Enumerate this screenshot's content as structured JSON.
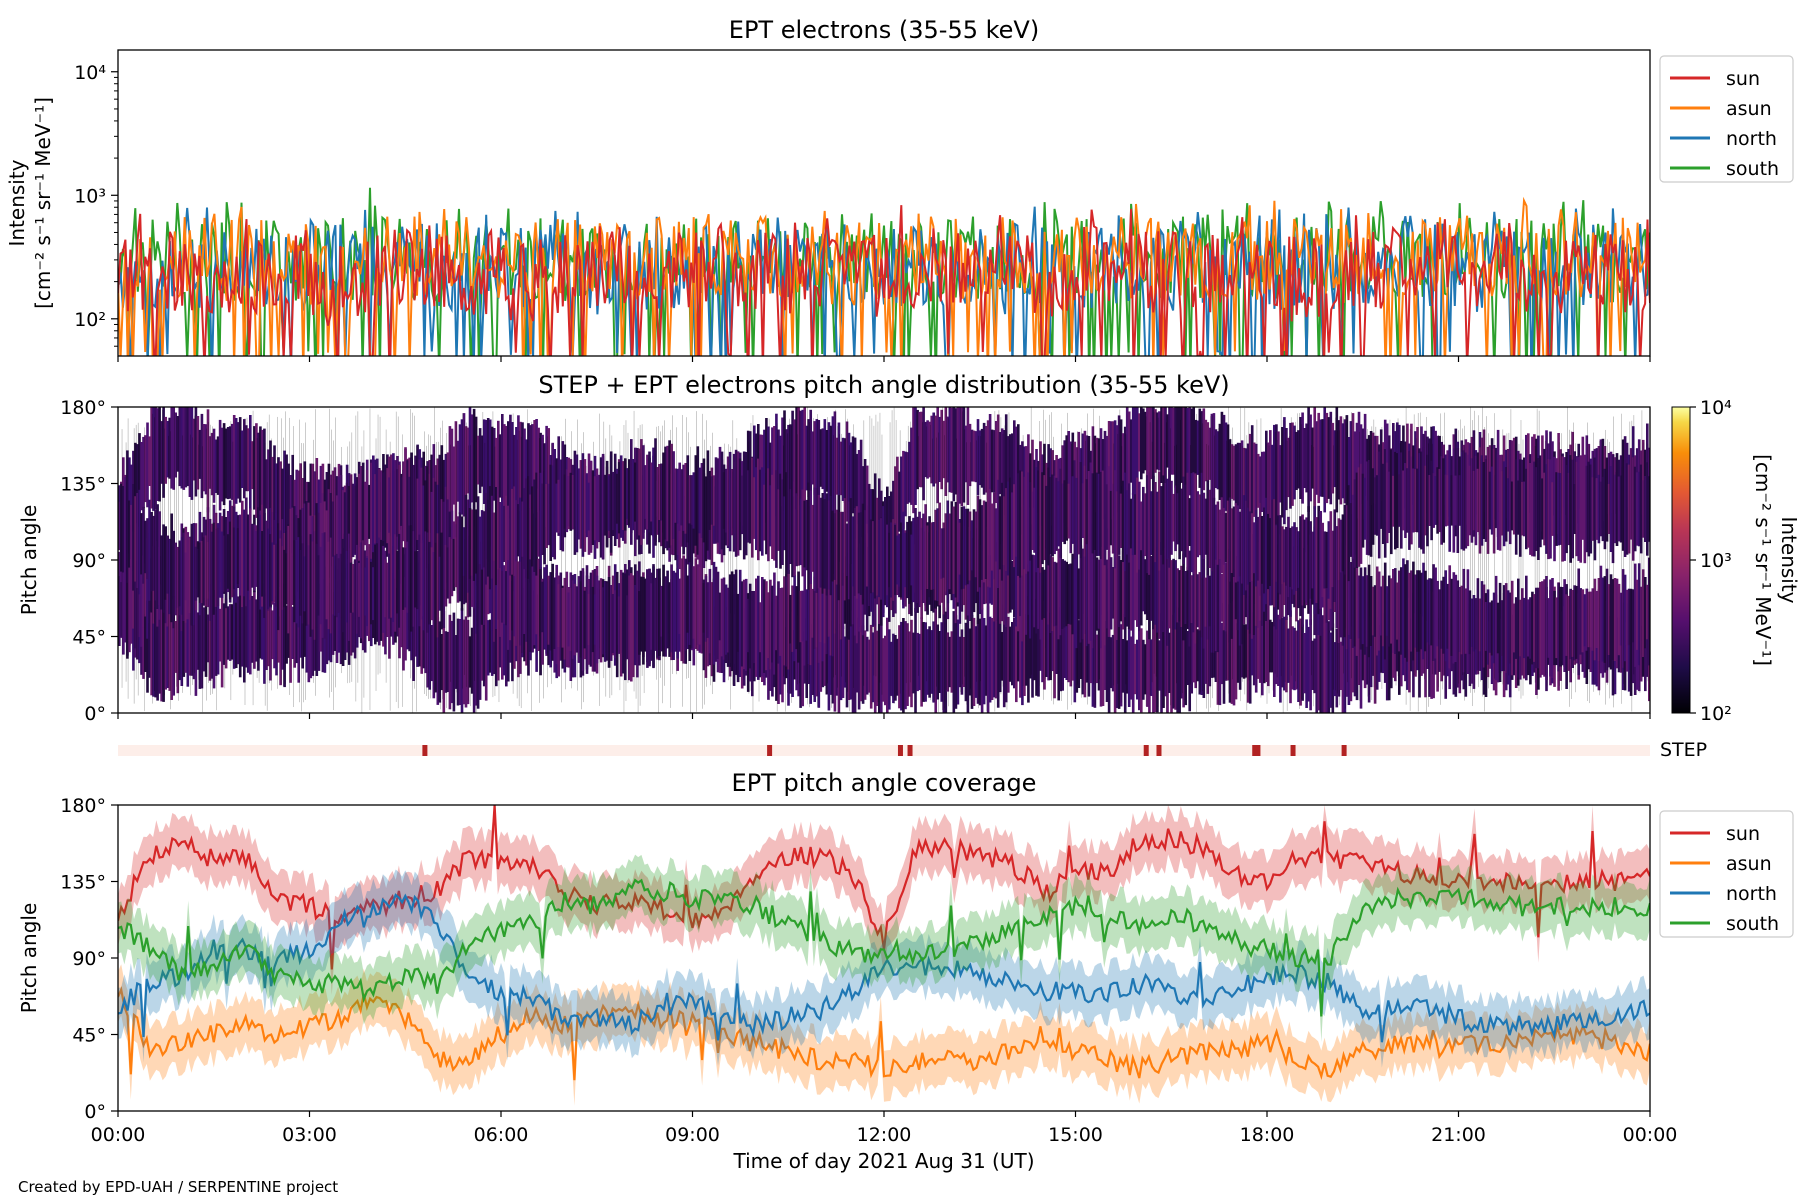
{
  "figure": {
    "credit": "Created by EPD-UAH / SERPENTINE project",
    "xlabel": "Time of day 2021 Aug 31 (UT)"
  },
  "colors": {
    "sun": "#d62728",
    "asun": "#ff7f0e",
    "north": "#1f77b4",
    "south": "#2ca02c",
    "step_marker": "#b22222",
    "step_bg": "#fdeee9"
  },
  "chart_data": [
    {
      "id": "intensity",
      "type": "line",
      "title": "EPT electrons (35-55 keV)",
      "ylabel_line1": "Intensity",
      "ylabel_line2": "[cm⁻² s⁻¹ sr⁻¹ MeV⁻¹]",
      "yscale": "log",
      "ylim": [
        50,
        15000
      ],
      "yticks": [
        100,
        1000,
        10000
      ],
      "ytick_labels": [
        "10²",
        "10³",
        "10⁴"
      ],
      "xlim": [
        "00:00",
        "24:00"
      ],
      "legend": "outside-right-top",
      "series": [
        {
          "name": "sun",
          "color_key": "sun",
          "values": [
            230,
            210,
            250,
            190,
            260,
            240,
            200,
            280,
            220,
            250,
            230,
            210,
            270,
            240,
            220,
            260,
            230,
            250,
            210,
            240,
            230,
            260,
            220,
            250,
            240
          ]
        },
        {
          "name": "asun",
          "color_key": "asun",
          "values": [
            290,
            300,
            320,
            280,
            330,
            310,
            290,
            340,
            300,
            320,
            310,
            280,
            330,
            300,
            290,
            320,
            310,
            300,
            330,
            290,
            310,
            320,
            300,
            310,
            300
          ]
        },
        {
          "name": "north",
          "color_key": "north",
          "values": [
            260,
            270,
            250,
            280,
            260,
            250,
            270,
            240,
            260,
            280,
            250,
            270,
            260,
            240,
            280,
            260,
            250,
            270,
            250,
            260,
            270,
            250,
            260,
            270,
            250
          ]
        },
        {
          "name": "south",
          "color_key": "south",
          "values": [
            280,
            300,
            290,
            310,
            300,
            290,
            320,
            280,
            300,
            290,
            310,
            300,
            280,
            310,
            290,
            300,
            310,
            290,
            300,
            320,
            290,
            300,
            310,
            290,
            300
          ]
        }
      ],
      "peak": {
        "time_h": 3.95,
        "value": 1150
      },
      "noise_range": [
        50,
        900
      ]
    },
    {
      "id": "pad",
      "type": "heatmap",
      "title": "STEP + EPT electrons pitch angle distribution (35-55 keV)",
      "ylabel": "Pitch angle",
      "ylim": [
        0,
        180
      ],
      "yticks": [
        0,
        45,
        90,
        135,
        180
      ],
      "ytick_labels": [
        "0°",
        "45°",
        "90°",
        "135°",
        "180°"
      ],
      "colorbar": {
        "label_line1": "Intensity",
        "label_line2": "[cm⁻² s⁻¹ sr⁻¹ MeV⁻¹]",
        "scale": "log",
        "range": [
          100,
          10000
        ],
        "tick_labels": [
          "10²",
          "10³",
          "10⁴"
        ],
        "colormap": "inferno"
      },
      "step_label": "STEP",
      "step_marks_hours": [
        4.8,
        10.2,
        12.25,
        12.4,
        16.1,
        16.3,
        17.8,
        17.85,
        18.4,
        19.2
      ]
    },
    {
      "id": "coverage",
      "type": "line",
      "title": "EPT pitch angle coverage",
      "ylabel": "Pitch angle",
      "ylim": [
        0,
        180
      ],
      "yticks": [
        0,
        45,
        90,
        135,
        180
      ],
      "ytick_labels": [
        "0°",
        "45°",
        "90°",
        "135°",
        "180°"
      ],
      "xlim": [
        "00:00",
        "24:00"
      ],
      "xtick_labels": [
        "00:00",
        "03:00",
        "06:00",
        "09:00",
        "12:00",
        "15:00",
        "18:00",
        "21:00",
        "00:00"
      ],
      "legend": "outside-right-top",
      "x_hours": [
        0,
        0.5,
        1,
        1.5,
        2,
        2.5,
        3,
        3.5,
        4,
        4.5,
        5,
        5.5,
        6,
        6.5,
        7,
        7.5,
        8,
        8.5,
        9,
        9.5,
        10,
        10.5,
        11,
        11.5,
        12,
        12.5,
        13,
        13.5,
        14,
        14.5,
        15,
        15.5,
        16,
        16.5,
        17,
        17.5,
        18,
        18.5,
        19,
        19.5,
        20,
        20.5,
        21,
        21.5,
        22,
        22.5,
        23,
        23.5,
        24
      ],
      "series": [
        {
          "name": "sun",
          "color_key": "sun",
          "values": [
            115,
            150,
            160,
            145,
            150,
            125,
            120,
            115,
            120,
            125,
            130,
            150,
            145,
            145,
            130,
            120,
            125,
            120,
            110,
            120,
            140,
            150,
            150,
            140,
            100,
            155,
            155,
            150,
            145,
            130,
            140,
            140,
            160,
            160,
            155,
            140,
            135,
            150,
            150,
            145,
            140,
            140,
            135,
            135,
            135,
            135,
            135,
            135,
            140
          ]
        },
        {
          "name": "asun",
          "color_key": "asun",
          "values": [
            70,
            35,
            40,
            45,
            50,
            45,
            50,
            55,
            70,
            55,
            30,
            30,
            45,
            55,
            50,
            55,
            60,
            55,
            55,
            45,
            40,
            35,
            30,
            30,
            25,
            30,
            30,
            30,
            35,
            40,
            35,
            30,
            25,
            30,
            35,
            35,
            40,
            30,
            25,
            35,
            40,
            40,
            40,
            40,
            40,
            45,
            45,
            40,
            35
          ]
        },
        {
          "name": "north",
          "color_key": "north",
          "values": [
            60,
            75,
            80,
            95,
            95,
            90,
            95,
            110,
            120,
            125,
            110,
            80,
            70,
            65,
            55,
            55,
            50,
            60,
            65,
            55,
            50,
            55,
            60,
            70,
            85,
            85,
            85,
            80,
            75,
            70,
            70,
            70,
            75,
            70,
            65,
            70,
            80,
            80,
            75,
            60,
            60,
            60,
            55,
            50,
            50,
            50,
            55,
            55,
            60
          ]
        },
        {
          "name": "south",
          "color_key": "south",
          "values": [
            110,
            95,
            80,
            85,
            95,
            80,
            75,
            75,
            70,
            80,
            75,
            100,
            105,
            110,
            125,
            120,
            130,
            130,
            125,
            125,
            120,
            110,
            100,
            95,
            90,
            90,
            95,
            100,
            110,
            115,
            120,
            115,
            110,
            115,
            110,
            100,
            95,
            90,
            90,
            120,
            125,
            125,
            125,
            125,
            120,
            120,
            120,
            120,
            120
          ]
        }
      ],
      "band_width_deg": 15
    }
  ]
}
